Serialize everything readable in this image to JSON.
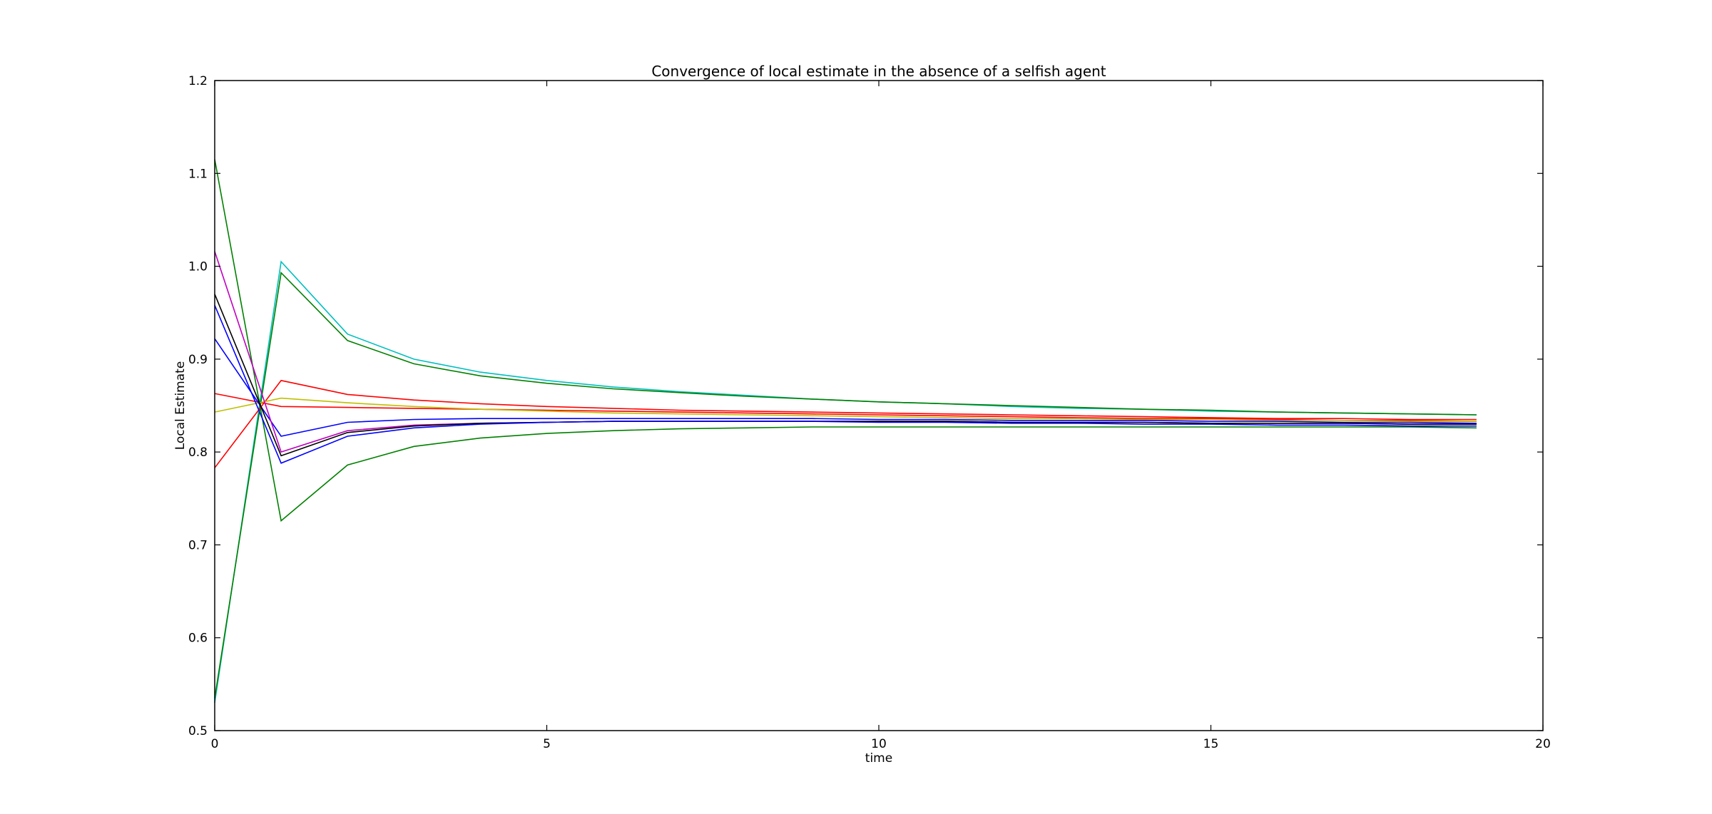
{
  "chart_data": {
    "type": "line",
    "title": "Convergence of local estimate in the absence of a selfish agent",
    "xlabel": "time",
    "ylabel": "Local Estimate",
    "xlim": [
      0,
      20
    ],
    "ylim": [
      0.5,
      1.2
    ],
    "xticks": [
      "0",
      "5",
      "10",
      "15",
      "20"
    ],
    "yticks": [
      "0.5",
      "0.6",
      "0.7",
      "0.8",
      "0.9",
      "1.0",
      "1.1",
      "1.2"
    ],
    "grid": false,
    "legend": "none",
    "x": [
      0,
      1,
      2,
      3,
      4,
      5,
      6,
      7,
      8,
      9,
      10,
      11,
      12,
      13,
      14,
      15,
      16,
      17,
      18,
      19
    ],
    "series": [
      {
        "color": "#00bfbf",
        "values": [
          0.53,
          1.005,
          0.927,
          0.9,
          0.886,
          0.877,
          0.87,
          0.865,
          0.861,
          0.857,
          0.854,
          0.852,
          0.849,
          0.847,
          0.846,
          0.844,
          0.843,
          0.842,
          0.841,
          0.84
        ]
      },
      {
        "color": "#008000",
        "values": [
          0.535,
          0.993,
          0.92,
          0.895,
          0.882,
          0.874,
          0.868,
          0.864,
          0.86,
          0.857,
          0.854,
          0.852,
          0.85,
          0.848,
          0.846,
          0.845,
          0.843,
          0.842,
          0.841,
          0.84
        ]
      },
      {
        "color": "#008000",
        "values": [
          1.115,
          0.726,
          0.786,
          0.806,
          0.815,
          0.82,
          0.823,
          0.825,
          0.826,
          0.827,
          0.827,
          0.827,
          0.827,
          0.827,
          0.827,
          0.827,
          0.827,
          0.827,
          0.827,
          0.826
        ]
      },
      {
        "color": "#ff0000",
        "values": [
          0.783,
          0.877,
          0.862,
          0.856,
          0.852,
          0.849,
          0.847,
          0.845,
          0.844,
          0.843,
          0.842,
          0.841,
          0.84,
          0.839,
          0.838,
          0.837,
          0.836,
          0.836,
          0.835,
          0.835
        ]
      },
      {
        "color": "#ff0000",
        "values": [
          0.863,
          0.849,
          0.848,
          0.847,
          0.846,
          0.845,
          0.844,
          0.843,
          0.842,
          0.841,
          0.84,
          0.839,
          0.838,
          0.837,
          0.836,
          0.836,
          0.835,
          0.834,
          0.834,
          0.833
        ]
      },
      {
        "color": "#bfbf00",
        "values": [
          0.843,
          0.858,
          0.853,
          0.849,
          0.846,
          0.844,
          0.842,
          0.841,
          0.84,
          0.839,
          0.838,
          0.837,
          0.836,
          0.836,
          0.835,
          0.835,
          0.834,
          0.834,
          0.833,
          0.833
        ]
      },
      {
        "color": "#0000ff",
        "values": [
          0.922,
          0.817,
          0.832,
          0.835,
          0.836,
          0.836,
          0.836,
          0.836,
          0.836,
          0.836,
          0.835,
          0.835,
          0.834,
          0.834,
          0.834,
          0.833,
          0.833,
          0.832,
          0.832,
          0.831
        ]
      },
      {
        "color": "#bf00bf",
        "values": [
          1.016,
          0.8,
          0.823,
          0.829,
          0.831,
          0.832,
          0.833,
          0.833,
          0.833,
          0.833,
          0.833,
          0.833,
          0.832,
          0.832,
          0.832,
          0.831,
          0.831,
          0.831,
          0.83,
          0.83
        ]
      },
      {
        "color": "#000000",
        "values": [
          0.97,
          0.796,
          0.821,
          0.828,
          0.831,
          0.832,
          0.833,
          0.833,
          0.833,
          0.833,
          0.833,
          0.833,
          0.832,
          0.832,
          0.832,
          0.831,
          0.831,
          0.831,
          0.83,
          0.83
        ]
      },
      {
        "color": "#0000ff",
        "values": [
          0.958,
          0.788,
          0.817,
          0.826,
          0.83,
          0.832,
          0.833,
          0.833,
          0.833,
          0.833,
          0.832,
          0.832,
          0.831,
          0.831,
          0.83,
          0.83,
          0.829,
          0.829,
          0.828,
          0.828
        ]
      }
    ]
  }
}
